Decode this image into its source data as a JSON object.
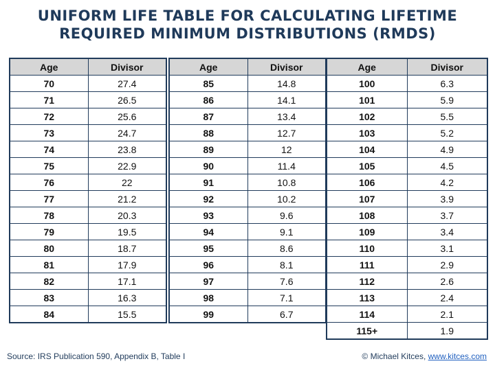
{
  "title": {
    "line1": "UNIFORM LIFE TABLE FOR CALCULATING LIFETIME",
    "line2": "REQUIRED MINIMUM DISTRIBUTIONS (RMDS)"
  },
  "columns": {
    "age": "Age",
    "divisor": "Divisor"
  },
  "tables": [
    {
      "rows": [
        {
          "age": "70",
          "divisor": "27.4"
        },
        {
          "age": "71",
          "divisor": "26.5"
        },
        {
          "age": "72",
          "divisor": "25.6"
        },
        {
          "age": "73",
          "divisor": "24.7"
        },
        {
          "age": "74",
          "divisor": "23.8"
        },
        {
          "age": "75",
          "divisor": "22.9"
        },
        {
          "age": "76",
          "divisor": "22"
        },
        {
          "age": "77",
          "divisor": "21.2"
        },
        {
          "age": "78",
          "divisor": "20.3"
        },
        {
          "age": "79",
          "divisor": "19.5"
        },
        {
          "age": "80",
          "divisor": "18.7"
        },
        {
          "age": "81",
          "divisor": "17.9"
        },
        {
          "age": "82",
          "divisor": "17.1"
        },
        {
          "age": "83",
          "divisor": "16.3"
        },
        {
          "age": "84",
          "divisor": "15.5"
        }
      ]
    },
    {
      "rows": [
        {
          "age": "85",
          "divisor": "14.8"
        },
        {
          "age": "86",
          "divisor": "14.1"
        },
        {
          "age": "87",
          "divisor": "13.4"
        },
        {
          "age": "88",
          "divisor": "12.7"
        },
        {
          "age": "89",
          "divisor": "12"
        },
        {
          "age": "90",
          "divisor": "11.4"
        },
        {
          "age": "91",
          "divisor": "10.8"
        },
        {
          "age": "92",
          "divisor": "10.2"
        },
        {
          "age": "93",
          "divisor": "9.6"
        },
        {
          "age": "94",
          "divisor": "9.1"
        },
        {
          "age": "95",
          "divisor": "8.6"
        },
        {
          "age": "96",
          "divisor": "8.1"
        },
        {
          "age": "97",
          "divisor": "7.6"
        },
        {
          "age": "98",
          "divisor": "7.1"
        },
        {
          "age": "99",
          "divisor": "6.7"
        }
      ]
    },
    {
      "rows": [
        {
          "age": "100",
          "divisor": "6.3"
        },
        {
          "age": "101",
          "divisor": "5.9"
        },
        {
          "age": "102",
          "divisor": "5.5"
        },
        {
          "age": "103",
          "divisor": "5.2"
        },
        {
          "age": "104",
          "divisor": "4.9"
        },
        {
          "age": "105",
          "divisor": "4.5"
        },
        {
          "age": "106",
          "divisor": "4.2"
        },
        {
          "age": "107",
          "divisor": "3.9"
        },
        {
          "age": "108",
          "divisor": "3.7"
        },
        {
          "age": "109",
          "divisor": "3.4"
        },
        {
          "age": "110",
          "divisor": "3.1"
        },
        {
          "age": "111",
          "divisor": "2.9"
        },
        {
          "age": "112",
          "divisor": "2.6"
        },
        {
          "age": "113",
          "divisor": "2.4"
        },
        {
          "age": "114",
          "divisor": "2.1"
        },
        {
          "age": "115+",
          "divisor": "1.9"
        }
      ]
    }
  ],
  "footer": {
    "source": "Source: IRS Publication 590, Appendix B, Table I",
    "copyright": "© Michael Kitces, ",
    "link": "www.kitces.com"
  }
}
